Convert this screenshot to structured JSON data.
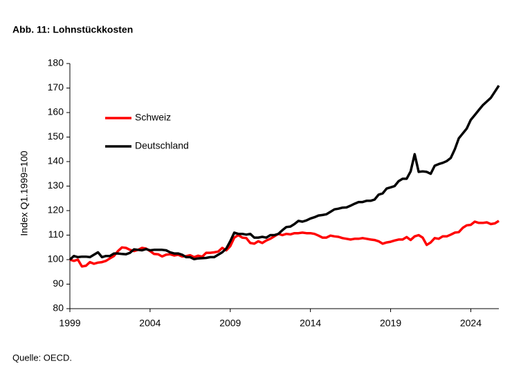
{
  "chart_data": {
    "type": "line",
    "title": "Abb. 11: Lohnstückkosten",
    "ylabel": "Index Q1.1999=100",
    "source": "Quelle: OECD.",
    "x": [
      1999,
      1999.25,
      1999.5,
      1999.75,
      2000,
      2000.25,
      2000.5,
      2000.75,
      2001,
      2001.25,
      2001.5,
      2001.75,
      2002,
      2002.25,
      2002.5,
      2002.75,
      2003,
      2003.25,
      2003.5,
      2003.75,
      2004,
      2004.25,
      2004.5,
      2004.75,
      2005,
      2005.25,
      2005.5,
      2005.75,
      2006,
      2006.25,
      2006.5,
      2006.75,
      2007,
      2007.25,
      2007.5,
      2007.75,
      2008,
      2008.25,
      2008.5,
      2008.75,
      2009,
      2009.25,
      2009.5,
      2009.75,
      2010,
      2010.25,
      2010.5,
      2010.75,
      2011,
      2011.25,
      2011.5,
      2011.75,
      2012,
      2012.25,
      2012.5,
      2012.75,
      2013,
      2013.25,
      2013.5,
      2013.75,
      2014,
      2014.25,
      2014.5,
      2014.75,
      2015,
      2015.25,
      2015.5,
      2015.75,
      2016,
      2016.25,
      2016.5,
      2016.75,
      2017,
      2017.25,
      2017.5,
      2017.75,
      2018,
      2018.25,
      2018.5,
      2018.75,
      2019,
      2019.25,
      2019.5,
      2019.75,
      2020,
      2020.25,
      2020.5,
      2020.75,
      2021,
      2021.25,
      2021.5,
      2021.75,
      2022,
      2022.25,
      2022.5,
      2022.75,
      2023,
      2023.25,
      2023.5,
      2023.75,
      2024,
      2024.25,
      2024.5,
      2024.75,
      2025,
      2025.25,
      2025.5,
      2025.75
    ],
    "series": [
      {
        "name": "Schweiz",
        "color": "#ff0000",
        "values": [
          100,
          99.5,
          100,
          97.2,
          97.5,
          99,
          98.3,
          98.8,
          99,
          99.5,
          100.5,
          101.5,
          103.5,
          105,
          104.8,
          104,
          103.5,
          104,
          104.8,
          104.5,
          103.5,
          102.3,
          102.2,
          101.3,
          102,
          102.2,
          101.7,
          102,
          101.3,
          101.4,
          101.8,
          101,
          101.6,
          101.2,
          102.8,
          102.8,
          103,
          103.3,
          104.8,
          103.8,
          105.5,
          109,
          110,
          109,
          108.8,
          106.8,
          106.5,
          107.5,
          106.8,
          107.8,
          108.5,
          109.5,
          110.5,
          110,
          110.5,
          110.3,
          110.8,
          110.8,
          111,
          110.8,
          110.8,
          110.5,
          109.8,
          109,
          109,
          109.8,
          109.5,
          109.3,
          108.8,
          108.5,
          108.2,
          108.5,
          108.5,
          108.8,
          108.5,
          108.2,
          108,
          107.5,
          106.5,
          107,
          107.3,
          107.8,
          108.2,
          108.2,
          109.2,
          108,
          109.5,
          110,
          109,
          106,
          107,
          108.8,
          108.5,
          109.5,
          109.5,
          110.2,
          111,
          111.2,
          113,
          114,
          114.2,
          115.5,
          115,
          115,
          115.2,
          114.5,
          114.8,
          115.8
        ]
      },
      {
        "name": "Deutschland",
        "color": "#000000",
        "values": [
          100,
          101.5,
          101,
          101.2,
          101.2,
          101,
          102,
          103,
          101,
          101.5,
          101.5,
          102.5,
          102.5,
          102.3,
          102.2,
          102.8,
          104.2,
          104,
          103.8,
          104.3,
          103.8,
          104,
          104,
          104,
          103.8,
          103,
          102.5,
          102.5,
          102,
          101,
          101,
          100.2,
          100.5,
          100.6,
          100.7,
          101,
          101,
          102,
          103,
          104.5,
          107.5,
          111,
          110.5,
          110.5,
          110.2,
          110.5,
          109,
          109,
          109.3,
          109,
          110,
          110,
          110.5,
          112,
          113.3,
          113.5,
          114.5,
          115.8,
          115.5,
          116,
          116.8,
          117.3,
          118,
          118.2,
          118.5,
          119.5,
          120.5,
          120.8,
          121.2,
          121.3,
          122,
          122.8,
          123.5,
          123.5,
          124,
          124,
          124.5,
          126.5,
          127,
          129,
          129.5,
          130,
          132,
          133,
          133,
          136,
          143,
          135.8,
          136,
          135.8,
          135,
          138.3,
          139,
          139.5,
          140.2,
          141.5,
          145,
          149.5,
          151.5,
          153.5,
          157,
          159,
          161,
          163,
          164.5,
          166,
          168.5,
          171
        ]
      }
    ],
    "xlim": [
      1999,
      2025.75
    ],
    "xticks": [
      1999,
      2004,
      2009,
      2014,
      2019,
      2024
    ],
    "ylim": [
      80,
      180
    ],
    "yticks": [
      80,
      90,
      100,
      110,
      120,
      130,
      140,
      150,
      160,
      170,
      180
    ],
    "grid": false,
    "legend": "upper left"
  }
}
